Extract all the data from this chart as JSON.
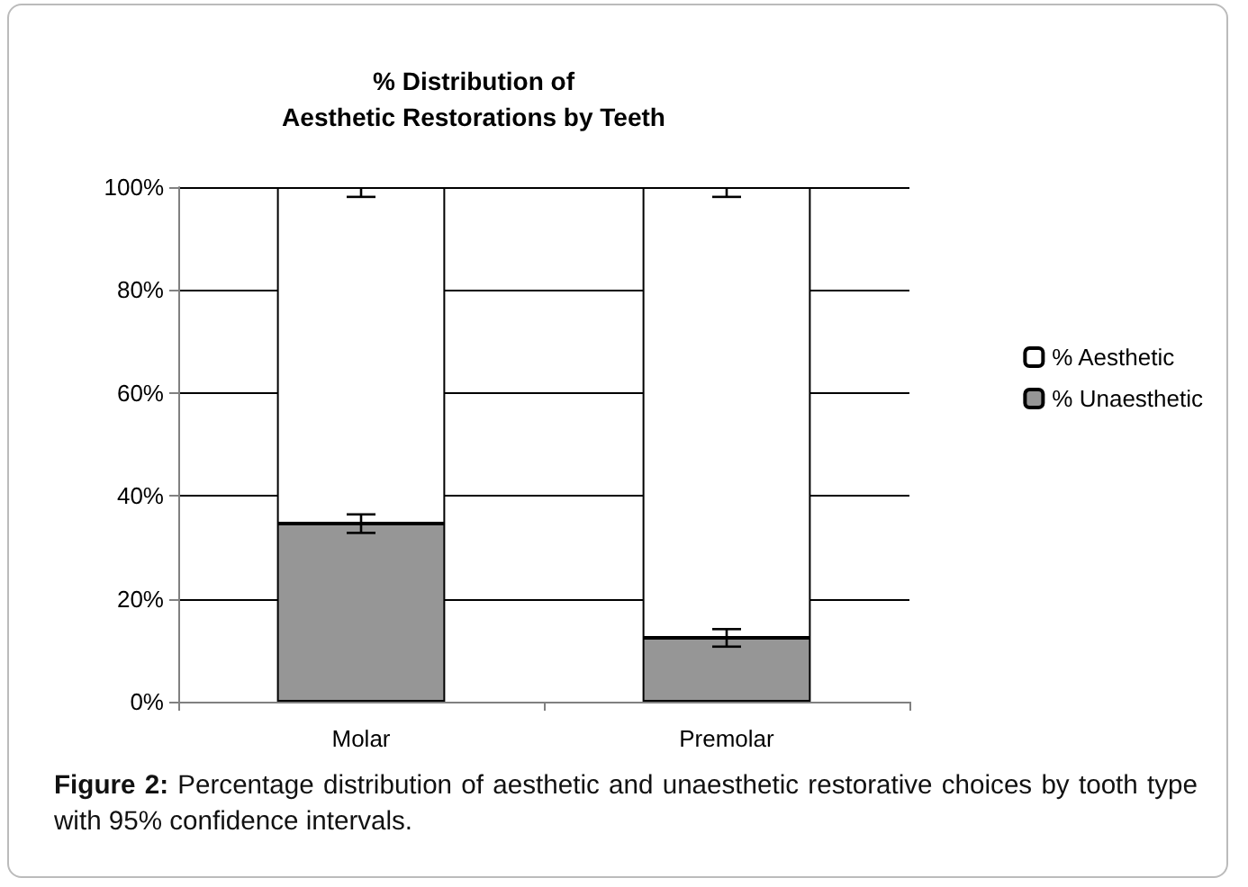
{
  "chart_data": {
    "type": "bar",
    "title": "% Distribution of\nAesthetic Restorations by Teeth",
    "categories": [
      "Molar",
      "Premolar"
    ],
    "stacked": true,
    "series": [
      {
        "name": "% Unaesthetic",
        "color": "#969696",
        "values": [
          34.6,
          12.4
        ],
        "errors": [
          1.8,
          1.7
        ]
      },
      {
        "name": "% Aesthetic",
        "color": "#ffffff",
        "values": [
          65.4,
          87.6
        ],
        "errors": [
          [
            98.1,
            100
          ],
          [
            98.1,
            100
          ]
        ]
      }
    ],
    "ylim": [
      0,
      100
    ],
    "yticks": [
      {
        "value": 0,
        "label": "0%"
      },
      {
        "value": 20,
        "label": "20%"
      },
      {
        "value": 40,
        "label": "40%"
      },
      {
        "value": 60,
        "label": "60%"
      },
      {
        "value": 80,
        "label": "80%"
      },
      {
        "value": 100,
        "label": "100%"
      }
    ],
    "grid": "y",
    "legend": "right",
    "annotations": [
      "Figure 2: Percentage distribution of aesthetic and unaesthetic restorative choices by tooth type with 95% confidence intervals."
    ]
  }
}
